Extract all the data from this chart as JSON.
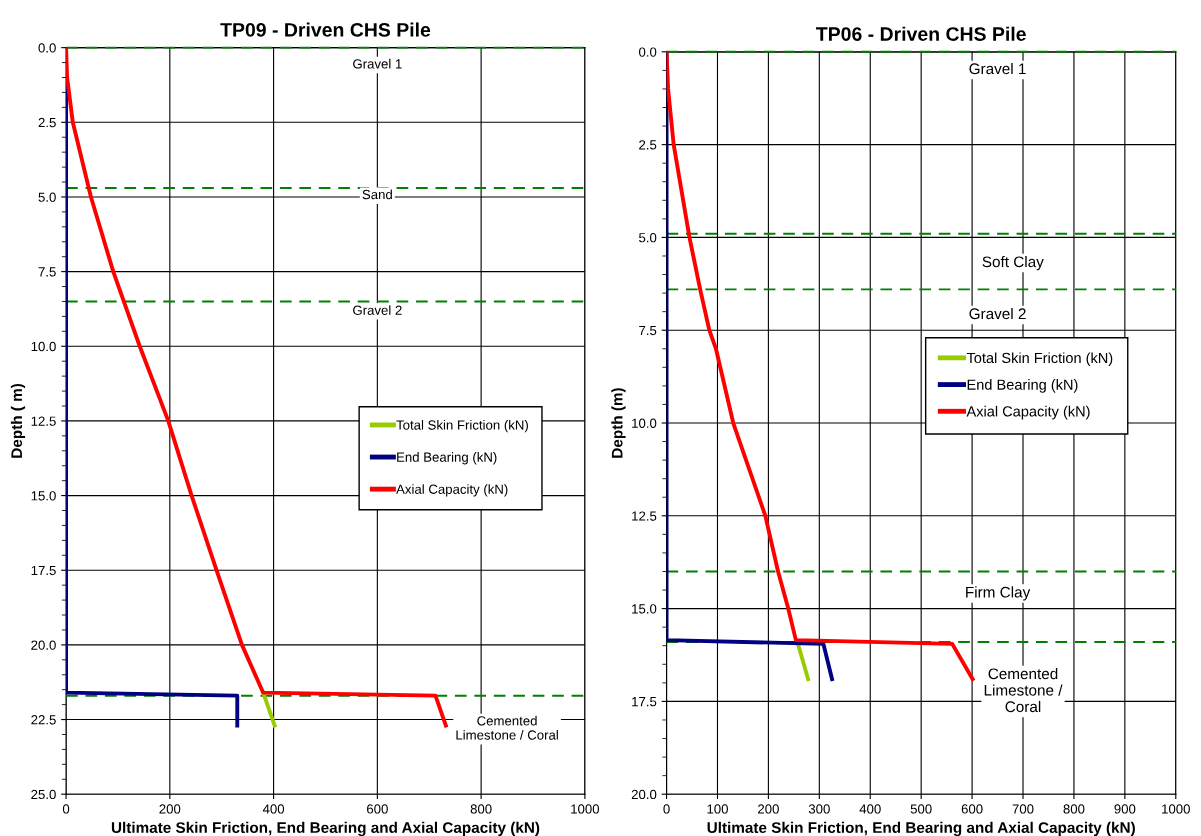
{
  "chart_data": [
    {
      "type": "line",
      "title": "TP09 - Driven CHS Pile",
      "xlabel": "Ultimate Skin Friction, End Bearing and Axial Capacity (kN)",
      "ylabel": "Depth ( m)",
      "xlim": [
        0,
        1000
      ],
      "xticks": [
        0,
        200,
        400,
        600,
        800,
        1000
      ],
      "ylim": [
        25,
        0
      ],
      "yticks": [
        {
          "value": 0,
          "label": "0.0"
        },
        {
          "value": 2.5,
          "label": "2.5"
        },
        {
          "value": 5,
          "label": "5.0"
        },
        {
          "value": 7.5,
          "label": "7.5"
        },
        {
          "value": 10,
          "label": "10.0"
        },
        {
          "value": 12.5,
          "label": "12.5"
        },
        {
          "value": 15,
          "label": "15.0"
        },
        {
          "value": 17.5,
          "label": "17.5"
        },
        {
          "value": 20,
          "label": "20.0"
        },
        {
          "value": 22.5,
          "label": "22.5"
        },
        {
          "value": 25,
          "label": "25.0"
        }
      ],
      "grid": true,
      "legend": "right",
      "marker": "none",
      "line_style": "solid",
      "series": [
        {
          "name": "Total Skin Friction (kN)",
          "color": "#99cc00",
          "x": [
            380,
            402
          ],
          "values": [
            21.6,
            22.7
          ]
        },
        {
          "name": "End Bearing (kN)",
          "color": "#000080",
          "x": [
            0,
            0,
            330,
            330
          ],
          "values": [
            0,
            21.6,
            21.7,
            22.7
          ]
        },
        {
          "name": "Axial Capacity (kN)",
          "color": "#ff0000",
          "x": [
            0,
            2,
            13,
            48,
            91,
            142,
            197,
            242,
            290,
            339,
            380,
            712,
            732
          ],
          "values": [
            0,
            1.0,
            2.5,
            5.0,
            7.5,
            10.0,
            12.5,
            15.0,
            17.5,
            20.0,
            21.6,
            21.7,
            22.7
          ]
        }
      ],
      "ref_lines": [
        {
          "axis": "y",
          "value": 0,
          "color": "#008000",
          "line_style": "dashed"
        },
        {
          "axis": "y",
          "value": 4.7,
          "color": "#008000",
          "line_style": "dashed"
        },
        {
          "axis": "y",
          "value": 8.5,
          "color": "#008000",
          "line_style": "dashed"
        },
        {
          "axis": "y",
          "value": 21.7,
          "color": "#008000",
          "line_style": "dashed"
        }
      ],
      "annotations": [
        "Gravel 1",
        "Sand",
        "Gravel 2",
        "Cemented\nLimestone / Coral"
      ]
    },
    {
      "type": "line",
      "title": "TP06 - Driven CHS Pile",
      "xlabel": "Ultimate Skin Friction, End Bearing and Axial Capacity (kN)",
      "ylabel": "Depth (m)",
      "xlim": [
        0,
        1000
      ],
      "xticks": [
        0,
        100,
        200,
        300,
        400,
        500,
        600,
        700,
        800,
        900,
        1000
      ],
      "ylim": [
        20,
        0
      ],
      "yticks": [
        {
          "value": 0,
          "label": "0.0"
        },
        {
          "value": 2.5,
          "label": "2.5"
        },
        {
          "value": 5,
          "label": "5.0"
        },
        {
          "value": 7.5,
          "label": "7.5"
        },
        {
          "value": 10,
          "label": "10.0"
        },
        {
          "value": 12.5,
          "label": "12.5"
        },
        {
          "value": 15,
          "label": "15.0"
        },
        {
          "value": 17.5,
          "label": "17.5"
        },
        {
          "value": 20,
          "label": "20.0"
        }
      ],
      "grid": true,
      "legend": "right",
      "marker": "none",
      "line_style": "solid",
      "series": [
        {
          "name": "Total Skin Friction (kN)",
          "color": "#99cc00",
          "x": [
            257,
            278
          ],
          "values": [
            15.9,
            16.9
          ]
        },
        {
          "name": "End Bearing (kN)",
          "color": "#000080",
          "x": [
            0,
            0,
            308,
            325
          ],
          "values": [
            0,
            15.85,
            15.95,
            16.9
          ]
        },
        {
          "name": "Axial Capacity (kN)",
          "color": "#ff0000",
          "x": [
            0,
            3,
            14,
            45,
            66,
            84,
            97,
            131,
            194,
            219,
            239,
            254,
            561,
            601
          ],
          "values": [
            0,
            1.0,
            2.5,
            5.0,
            6.4,
            7.5,
            8.0,
            10.0,
            12.5,
            14.0,
            15.0,
            15.85,
            15.95,
            16.9
          ]
        }
      ],
      "ref_lines": [
        {
          "axis": "y",
          "value": 0,
          "color": "#008000",
          "line_style": "dashed"
        },
        {
          "axis": "y",
          "value": 4.9,
          "color": "#008000",
          "line_style": "dashed"
        },
        {
          "axis": "y",
          "value": 6.4,
          "color": "#008000",
          "line_style": "dashed"
        },
        {
          "axis": "y",
          "value": 14.0,
          "color": "#008000",
          "line_style": "dashed"
        },
        {
          "axis": "y",
          "value": 15.9,
          "color": "#008000",
          "line_style": "dashed"
        }
      ],
      "annotations": [
        "Gravel 1",
        "Soft Clay",
        "Gravel 2",
        "Firm Clay",
        "Cemented\nLimestone /\nCoral"
      ]
    }
  ]
}
